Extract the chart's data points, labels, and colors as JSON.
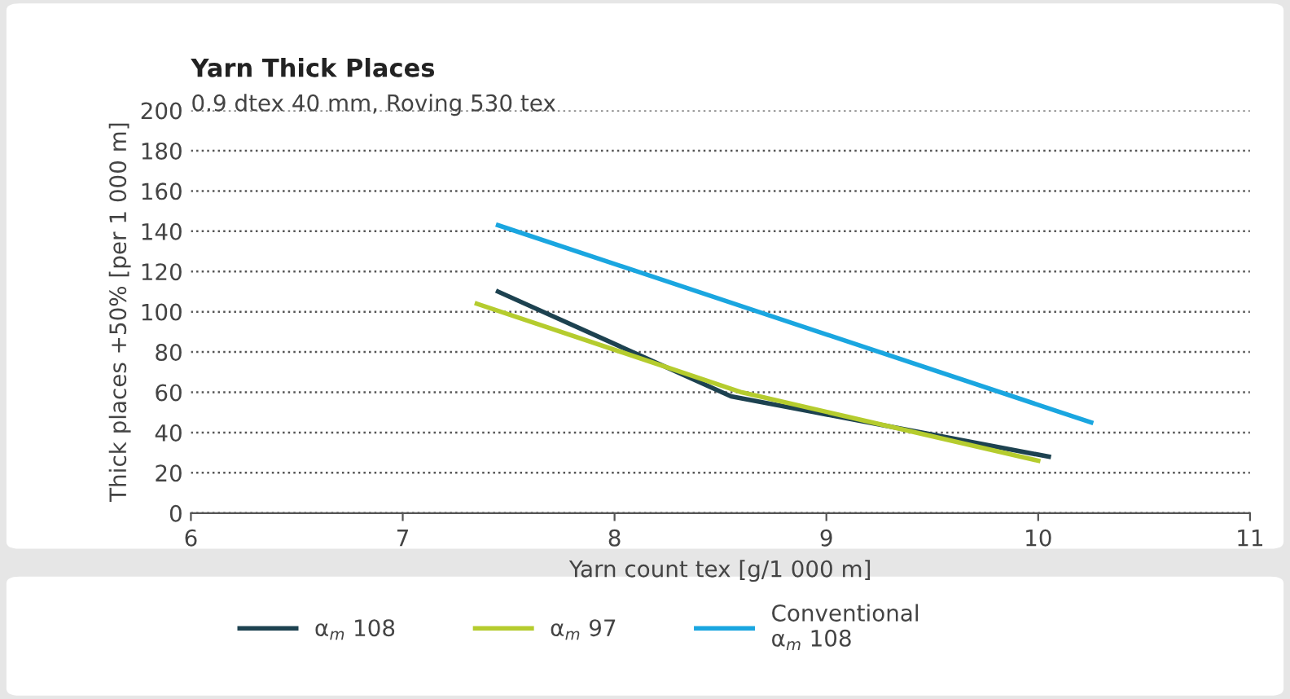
{
  "chart_data": {
    "type": "line",
    "title": "Yarn Thick Places",
    "subtitle": "0.9 dtex 40 mm, Roving 530 tex",
    "xlabel": "Yarn count tex [g/1 000 m]",
    "ylabel": "Thick places +50% [per 1 000 m]",
    "xlim": [
      6,
      11
    ],
    "xticks": [
      6,
      7,
      8,
      9,
      10,
      11
    ],
    "ylim": [
      0,
      200
    ],
    "yticks": [
      0,
      20,
      40,
      60,
      80,
      100,
      120,
      140,
      160,
      180,
      200
    ],
    "grid": "y",
    "legend": "bottom",
    "line_style": "solid",
    "marker": "none",
    "series": [
      {
        "name": "α$_{m}$ 108",
        "color": "#1d4250",
        "x": [
          7.45,
          8.55,
          10.05
        ],
        "values": [
          110,
          58,
          28
        ]
      },
      {
        "name": "α$_{m}$ 97",
        "color": "#b5cc2e",
        "x": [
          7.35,
          8.6,
          10.0
        ],
        "values": [
          104,
          60,
          26
        ]
      },
      {
        "name": "Conventional\nα$_{m}$ 108",
        "color": "#1aa6e0",
        "x": [
          7.45,
          10.25
        ],
        "values": [
          143,
          45
        ]
      }
    ]
  }
}
